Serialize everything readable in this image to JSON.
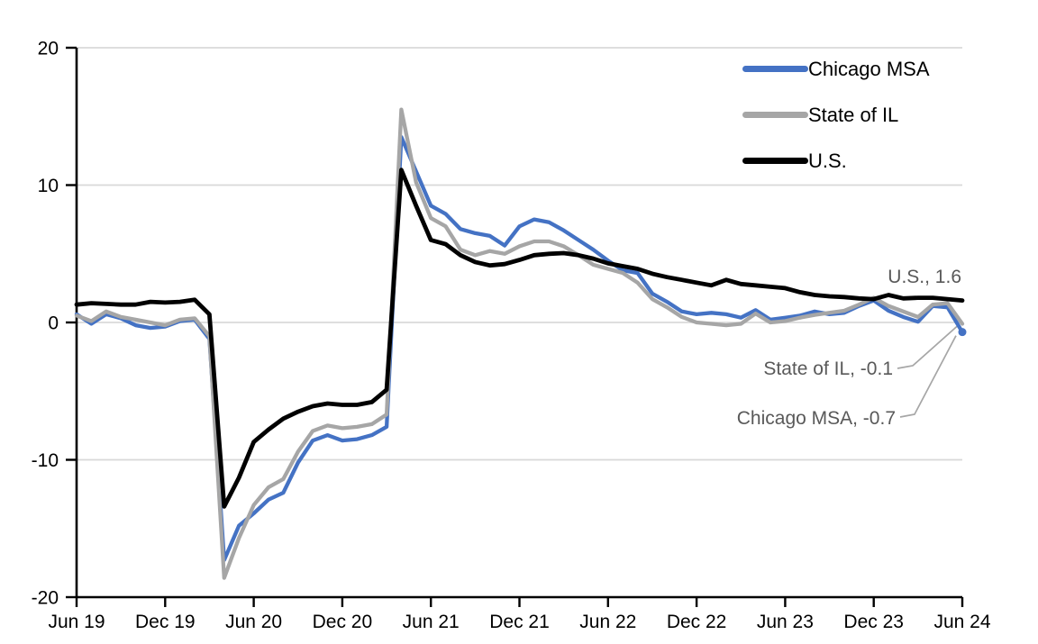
{
  "chart_data": {
    "type": "line",
    "title": "",
    "xlabel": "",
    "ylabel": "",
    "ylim": [
      -20,
      20
    ],
    "y_ticks": [
      -20,
      -10,
      0,
      10,
      20
    ],
    "grid": "horizontal",
    "legend_position": "top-right",
    "x_tick_labels": [
      "Jun 19",
      "Dec 19",
      "Jun 20",
      "Dec 20",
      "Jun 21",
      "Dec 21",
      "Jun 22",
      "Dec 22",
      "Jun 23",
      "Dec 23",
      "Jun 24"
    ],
    "months": [
      "2019-06",
      "2019-07",
      "2019-08",
      "2019-09",
      "2019-10",
      "2019-11",
      "2019-12",
      "2020-01",
      "2020-02",
      "2020-03",
      "2020-04",
      "2020-05",
      "2020-06",
      "2020-07",
      "2020-08",
      "2020-09",
      "2020-10",
      "2020-11",
      "2020-12",
      "2021-01",
      "2021-02",
      "2021-03",
      "2021-04",
      "2021-05",
      "2021-06",
      "2021-07",
      "2021-08",
      "2021-09",
      "2021-10",
      "2021-11",
      "2021-12",
      "2022-01",
      "2022-02",
      "2022-03",
      "2022-04",
      "2022-05",
      "2022-06",
      "2022-07",
      "2022-08",
      "2022-09",
      "2022-10",
      "2022-11",
      "2022-12",
      "2023-01",
      "2023-02",
      "2023-03",
      "2023-04",
      "2023-05",
      "2023-06",
      "2023-07",
      "2023-08",
      "2023-09",
      "2023-10",
      "2023-11",
      "2023-12",
      "2024-01",
      "2024-02",
      "2024-03",
      "2024-04",
      "2024-05",
      "2024-06"
    ],
    "series": [
      {
        "name": "Chicago MSA",
        "color": "#4472C4",
        "end_value": -0.7,
        "end_marker": true,
        "values": [
          0.6,
          -0.1,
          0.6,
          0.3,
          -0.2,
          -0.4,
          -0.3,
          0.1,
          0.2,
          -1.2,
          -17.3,
          -14.8,
          -13.9,
          -12.9,
          -12.4,
          -10.2,
          -8.6,
          -8.2,
          -8.6,
          -8.5,
          -8.2,
          -7.6,
          13.5,
          11.0,
          8.5,
          7.9,
          6.8,
          6.5,
          6.3,
          5.6,
          7.0,
          7.5,
          7.3,
          6.7,
          6.0,
          5.3,
          4.5,
          3.8,
          3.6,
          2.1,
          1.5,
          0.8,
          0.6,
          0.7,
          0.6,
          0.35,
          0.9,
          0.2,
          0.35,
          0.5,
          0.8,
          0.6,
          0.7,
          1.2,
          1.6,
          0.85,
          0.4,
          0.05,
          1.2,
          1.1,
          -0.7
        ]
      },
      {
        "name": "State of IL",
        "color": "#A6A6A6",
        "end_value": -0.1,
        "end_marker": false,
        "values": [
          0.5,
          0.1,
          0.8,
          0.4,
          0.2,
          0.0,
          -0.2,
          0.2,
          0.3,
          -1.0,
          -18.6,
          -15.7,
          -13.3,
          -12.0,
          -11.4,
          -9.4,
          -7.9,
          -7.5,
          -7.7,
          -7.6,
          -7.4,
          -6.7,
          15.5,
          10.2,
          7.6,
          7.0,
          5.3,
          4.9,
          5.2,
          5.0,
          5.55,
          5.9,
          5.9,
          5.55,
          4.9,
          4.2,
          3.9,
          3.6,
          2.9,
          1.7,
          1.1,
          0.4,
          0.0,
          -0.1,
          -0.2,
          -0.1,
          0.65,
          0.0,
          0.1,
          0.35,
          0.55,
          0.7,
          0.85,
          1.3,
          1.8,
          1.2,
          0.8,
          0.4,
          1.3,
          1.4,
          -0.1
        ]
      },
      {
        "name": "U.S.",
        "color": "#000000",
        "end_value": 1.6,
        "end_marker": false,
        "values": [
          1.3,
          1.4,
          1.35,
          1.3,
          1.3,
          1.5,
          1.45,
          1.5,
          1.65,
          0.6,
          -13.4,
          -11.3,
          -8.7,
          -7.8,
          -7.0,
          -6.5,
          -6.1,
          -5.9,
          -6.0,
          -6.0,
          -5.8,
          -4.9,
          11.1,
          8.5,
          6.0,
          5.7,
          4.9,
          4.4,
          4.15,
          4.25,
          4.55,
          4.9,
          5.0,
          5.05,
          4.9,
          4.65,
          4.3,
          4.1,
          3.9,
          3.55,
          3.3,
          3.1,
          2.9,
          2.7,
          3.1,
          2.8,
          2.7,
          2.6,
          2.5,
          2.2,
          2.0,
          1.9,
          1.85,
          1.75,
          1.7,
          2.0,
          1.75,
          1.8,
          1.8,
          1.7,
          1.6
        ]
      }
    ],
    "annotations": [
      {
        "id": "us",
        "text": "U.S., 1.6"
      },
      {
        "id": "il",
        "text": "State of IL, -0.1"
      },
      {
        "id": "chi",
        "text": "Chicago MSA, -0.7"
      }
    ]
  },
  "legend": {
    "items": [
      {
        "label": "Chicago MSA",
        "color": "#4472C4"
      },
      {
        "label": "State of IL",
        "color": "#A6A6A6"
      },
      {
        "label": "U.S.",
        "color": "#000000"
      }
    ]
  },
  "colors": {
    "chicago": "#4472C4",
    "illinois": "#A6A6A6",
    "us": "#000000",
    "grid": "#D9D9D9",
    "axis": "#000000",
    "annotation_text": "#595959",
    "leader_line": "#A6A6A6",
    "background": "#FFFFFF"
  }
}
